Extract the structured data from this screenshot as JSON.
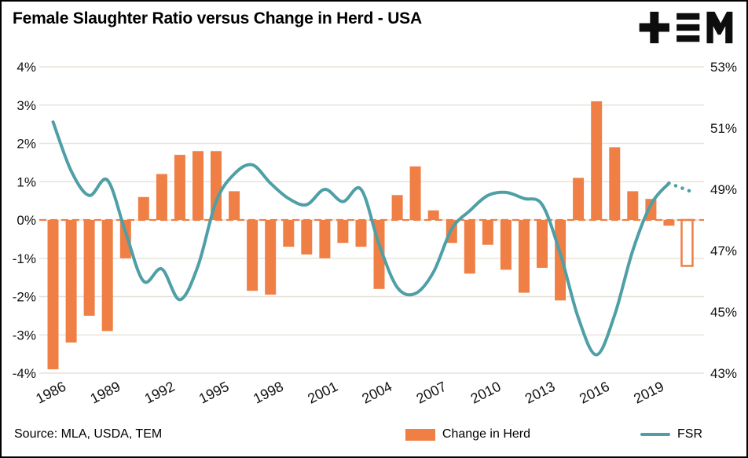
{
  "header": {
    "title": "Female Slaughter Ratio versus Change in Herd - USA"
  },
  "logo": {
    "name": "TEM"
  },
  "footer": {
    "source": "Source: MLA, USDA, TEM"
  },
  "colors": {
    "bar": "#EF7F44",
    "line": "#4E9FA6",
    "grid": "#E7E1D8",
    "zero_dash": "#EF7F44",
    "text": "#111111"
  },
  "chart_data": {
    "type": "bar+line",
    "title": "Female Slaughter Ratio versus Change in Herd - USA",
    "years": [
      1986,
      1987,
      1988,
      1989,
      1990,
      1991,
      1992,
      1993,
      1994,
      1995,
      1996,
      1997,
      1998,
      1999,
      2000,
      2001,
      2002,
      2003,
      2004,
      2005,
      2006,
      2007,
      2008,
      2009,
      2010,
      2011,
      2012,
      2013,
      2014,
      2015,
      2016,
      2017,
      2018,
      2019,
      2020,
      2021
    ],
    "x_ticks": [
      "1986",
      "1989",
      "1992",
      "1995",
      "1998",
      "2001",
      "2004",
      "2007",
      "2010",
      "2013",
      "2016",
      "2019"
    ],
    "series": [
      {
        "name": "Change in Herd",
        "type": "bar",
        "axis": "left",
        "forecast_last": true,
        "values": [
          -3.9,
          -3.2,
          -2.5,
          -2.9,
          -1.0,
          0.6,
          1.2,
          1.7,
          1.8,
          1.8,
          0.75,
          -1.85,
          -1.95,
          -0.7,
          -0.9,
          -1.0,
          -0.6,
          -0.7,
          -1.8,
          0.65,
          1.4,
          0.25,
          -0.6,
          -1.4,
          -0.65,
          -1.3,
          -1.9,
          -1.25,
          -2.1,
          1.1,
          3.1,
          1.9,
          0.75,
          0.55,
          -0.15,
          -1.2
        ]
      },
      {
        "name": "FSR",
        "type": "line",
        "axis": "right",
        "forecast_last": true,
        "values": [
          51.2,
          49.6,
          48.8,
          49.3,
          47.6,
          46.0,
          46.4,
          45.4,
          46.5,
          48.6,
          49.5,
          49.8,
          49.2,
          48.7,
          48.5,
          49.0,
          48.6,
          49.0,
          47.2,
          45.8,
          45.6,
          46.3,
          47.7,
          48.3,
          48.8,
          48.9,
          48.7,
          48.5,
          46.9,
          44.8,
          43.6,
          44.9,
          47.0,
          48.5,
          49.2,
          48.9
        ]
      }
    ],
    "left_axis": {
      "min": -4,
      "max": 4,
      "ticks": [
        4,
        3,
        2,
        1,
        0,
        -1,
        -2,
        -3,
        -4
      ],
      "tick_labels": [
        "4%",
        "3%",
        "2%",
        "1%",
        "0%",
        "-1%",
        "-2%",
        "-3%",
        "-4%"
      ]
    },
    "right_axis": {
      "min": 43,
      "max": 53,
      "ticks": [
        53,
        51,
        49,
        47,
        45,
        43
      ],
      "tick_labels": [
        "53%",
        "51%",
        "49%",
        "47%",
        "45%",
        "43%"
      ]
    },
    "grid": true,
    "zero_line_dashed": true,
    "legend_position": "bottom"
  }
}
